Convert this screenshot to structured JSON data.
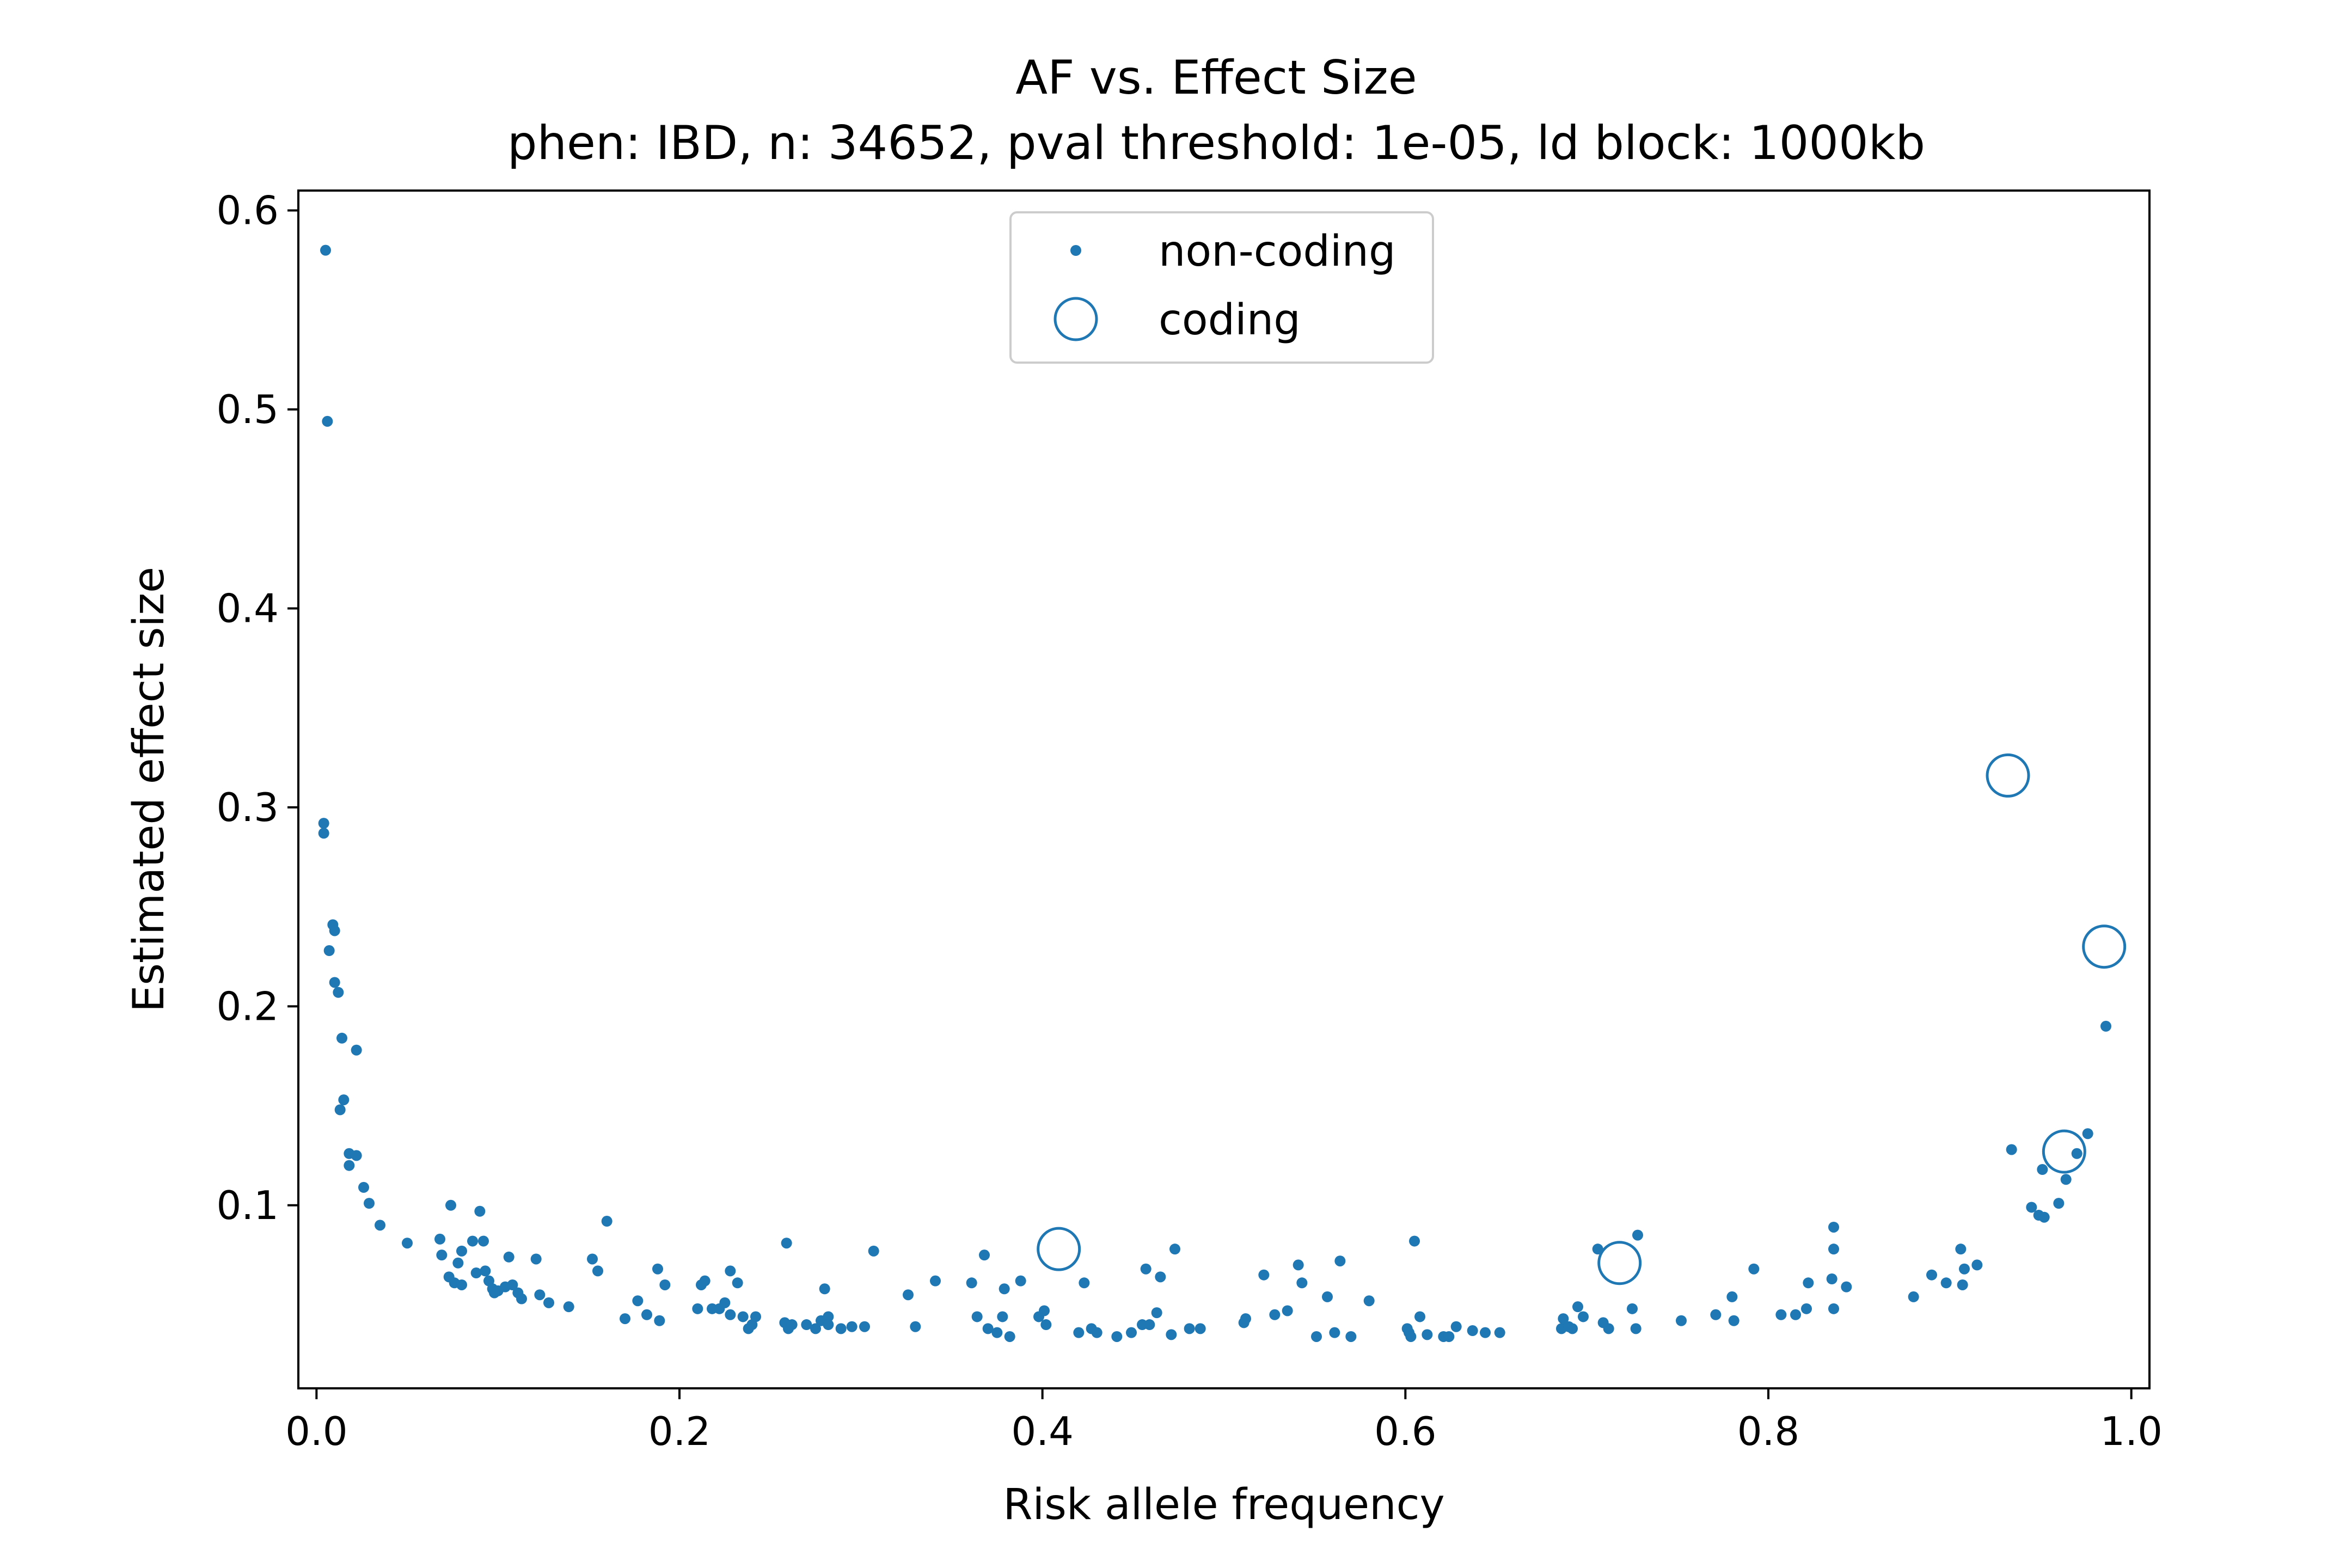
{
  "chart_data": {
    "type": "scatter",
    "title": "AF vs. Effect Size",
    "subtitle": "phen: IBD, n: 34652, pval threshold: 1e-05, ld block: 1000kb",
    "xlabel": "Risk allele frequency",
    "ylabel": "Estimated effect size",
    "xlim": [
      -0.01,
      1.01
    ],
    "ylim": [
      0.008,
      0.61
    ],
    "xticks": [
      "0.0",
      "0.2",
      "0.4",
      "0.6",
      "0.8",
      "1.0"
    ],
    "yticks": [
      "0.1",
      "0.2",
      "0.3",
      "0.4",
      "0.5",
      "0.6"
    ],
    "grid": false,
    "legend_position": "top-center",
    "color": "#1f77b4",
    "series": [
      {
        "name": "non-coding",
        "marker": "dot",
        "points": [
          [
            0.005,
            0.58
          ],
          [
            0.006,
            0.494
          ],
          [
            0.004,
            0.292
          ],
          [
            0.004,
            0.287
          ],
          [
            0.009,
            0.241
          ],
          [
            0.01,
            0.238
          ],
          [
            0.007,
            0.228
          ],
          [
            0.01,
            0.212
          ],
          [
            0.012,
            0.207
          ],
          [
            0.014,
            0.184
          ],
          [
            0.022,
            0.178
          ],
          [
            0.015,
            0.153
          ],
          [
            0.013,
            0.148
          ],
          [
            0.018,
            0.126
          ],
          [
            0.022,
            0.125
          ],
          [
            0.018,
            0.12
          ],
          [
            0.026,
            0.109
          ],
          [
            0.029,
            0.101
          ],
          [
            0.035,
            0.09
          ],
          [
            0.05,
            0.081
          ],
          [
            0.068,
            0.083
          ],
          [
            0.074,
            0.1
          ],
          [
            0.08,
            0.077
          ],
          [
            0.069,
            0.075
          ],
          [
            0.078,
            0.071
          ],
          [
            0.073,
            0.064
          ],
          [
            0.076,
            0.061
          ],
          [
            0.08,
            0.06
          ],
          [
            0.086,
            0.082
          ],
          [
            0.09,
            0.097
          ],
          [
            0.092,
            0.082
          ],
          [
            0.088,
            0.066
          ],
          [
            0.093,
            0.067
          ],
          [
            0.095,
            0.062
          ],
          [
            0.097,
            0.058
          ],
          [
            0.1,
            0.057
          ],
          [
            0.098,
            0.056
          ],
          [
            0.104,
            0.059
          ],
          [
            0.106,
            0.074
          ],
          [
            0.108,
            0.06
          ],
          [
            0.111,
            0.056
          ],
          [
            0.113,
            0.053
          ],
          [
            0.121,
            0.073
          ],
          [
            0.123,
            0.055
          ],
          [
            0.128,
            0.051
          ],
          [
            0.139,
            0.049
          ],
          [
            0.152,
            0.073
          ],
          [
            0.155,
            0.067
          ],
          [
            0.16,
            0.092
          ],
          [
            0.17,
            0.043
          ],
          [
            0.177,
            0.052
          ],
          [
            0.182,
            0.045
          ],
          [
            0.188,
            0.068
          ],
          [
            0.189,
            0.042
          ],
          [
            0.192,
            0.06
          ],
          [
            0.21,
            0.048
          ],
          [
            0.212,
            0.06
          ],
          [
            0.214,
            0.062
          ],
          [
            0.218,
            0.048
          ],
          [
            0.222,
            0.048
          ],
          [
            0.225,
            0.051
          ],
          [
            0.228,
            0.045
          ],
          [
            0.228,
            0.067
          ],
          [
            0.232,
            0.061
          ],
          [
            0.235,
            0.044
          ],
          [
            0.238,
            0.038
          ],
          [
            0.24,
            0.04
          ],
          [
            0.242,
            0.044
          ],
          [
            0.258,
            0.041
          ],
          [
            0.26,
            0.038
          ],
          [
            0.262,
            0.04
          ],
          [
            0.259,
            0.081
          ],
          [
            0.27,
            0.04
          ],
          [
            0.275,
            0.038
          ],
          [
            0.278,
            0.042
          ],
          [
            0.28,
            0.058
          ],
          [
            0.282,
            0.044
          ],
          [
            0.282,
            0.04
          ],
          [
            0.289,
            0.038
          ],
          [
            0.295,
            0.039
          ],
          [
            0.302,
            0.039
          ],
          [
            0.307,
            0.077
          ],
          [
            0.326,
            0.055
          ],
          [
            0.33,
            0.039
          ],
          [
            0.341,
            0.062
          ],
          [
            0.361,
            0.061
          ],
          [
            0.364,
            0.044
          ],
          [
            0.368,
            0.075
          ],
          [
            0.37,
            0.038
          ],
          [
            0.375,
            0.036
          ],
          [
            0.378,
            0.044
          ],
          [
            0.379,
            0.058
          ],
          [
            0.382,
            0.034
          ],
          [
            0.388,
            0.062
          ],
          [
            0.398,
            0.044
          ],
          [
            0.401,
            0.047
          ],
          [
            0.402,
            0.04
          ],
          [
            0.42,
            0.036
          ],
          [
            0.423,
            0.061
          ],
          [
            0.427,
            0.038
          ],
          [
            0.43,
            0.036
          ],
          [
            0.441,
            0.034
          ],
          [
            0.449,
            0.036
          ],
          [
            0.455,
            0.04
          ],
          [
            0.457,
            0.068
          ],
          [
            0.459,
            0.04
          ],
          [
            0.463,
            0.046
          ],
          [
            0.465,
            0.064
          ],
          [
            0.471,
            0.035
          ],
          [
            0.473,
            0.078
          ],
          [
            0.481,
            0.038
          ],
          [
            0.487,
            0.038
          ],
          [
            0.511,
            0.041
          ],
          [
            0.512,
            0.043
          ],
          [
            0.522,
            0.065
          ],
          [
            0.528,
            0.045
          ],
          [
            0.535,
            0.047
          ],
          [
            0.541,
            0.07
          ],
          [
            0.543,
            0.061
          ],
          [
            0.551,
            0.034
          ],
          [
            0.557,
            0.054
          ],
          [
            0.561,
            0.036
          ],
          [
            0.564,
            0.072
          ],
          [
            0.57,
            0.034
          ],
          [
            0.58,
            0.052
          ],
          [
            0.601,
            0.038
          ],
          [
            0.602,
            0.036
          ],
          [
            0.603,
            0.034
          ],
          [
            0.605,
            0.082
          ],
          [
            0.608,
            0.044
          ],
          [
            0.612,
            0.035
          ],
          [
            0.621,
            0.034
          ],
          [
            0.624,
            0.034
          ],
          [
            0.628,
            0.039
          ],
          [
            0.637,
            0.037
          ],
          [
            0.644,
            0.036
          ],
          [
            0.652,
            0.036
          ],
          [
            0.686,
            0.038
          ],
          [
            0.687,
            0.043
          ],
          [
            0.69,
            0.039
          ],
          [
            0.692,
            0.038
          ],
          [
            0.695,
            0.049
          ],
          [
            0.698,
            0.044
          ],
          [
            0.706,
            0.078
          ],
          [
            0.709,
            0.041
          ],
          [
            0.712,
            0.038
          ],
          [
            0.725,
            0.048
          ],
          [
            0.727,
            0.038
          ],
          [
            0.728,
            0.085
          ],
          [
            0.752,
            0.042
          ],
          [
            0.771,
            0.045
          ],
          [
            0.78,
            0.054
          ],
          [
            0.781,
            0.042
          ],
          [
            0.792,
            0.068
          ],
          [
            0.807,
            0.045
          ],
          [
            0.815,
            0.045
          ],
          [
            0.821,
            0.048
          ],
          [
            0.822,
            0.061
          ],
          [
            0.836,
            0.089
          ],
          [
            0.836,
            0.078
          ],
          [
            0.835,
            0.063
          ],
          [
            0.836,
            0.048
          ],
          [
            0.843,
            0.059
          ],
          [
            0.88,
            0.054
          ],
          [
            0.89,
            0.065
          ],
          [
            0.898,
            0.061
          ],
          [
            0.906,
            0.078
          ],
          [
            0.907,
            0.06
          ],
          [
            0.908,
            0.068
          ],
          [
            0.915,
            0.07
          ],
          [
            0.934,
            0.128
          ],
          [
            0.945,
            0.099
          ],
          [
            0.949,
            0.095
          ],
          [
            0.952,
            0.094
          ],
          [
            0.951,
            0.118
          ],
          [
            0.96,
            0.101
          ],
          [
            0.964,
            0.113
          ],
          [
            0.97,
            0.126
          ],
          [
            0.976,
            0.136
          ],
          [
            0.986,
            0.19
          ]
        ]
      },
      {
        "name": "coding",
        "marker": "circle",
        "points": [
          [
            0.409,
            0.078
          ],
          [
            0.718,
            0.071
          ],
          [
            0.932,
            0.316
          ],
          [
            0.963,
            0.127
          ],
          [
            0.985,
            0.23
          ]
        ]
      }
    ]
  }
}
